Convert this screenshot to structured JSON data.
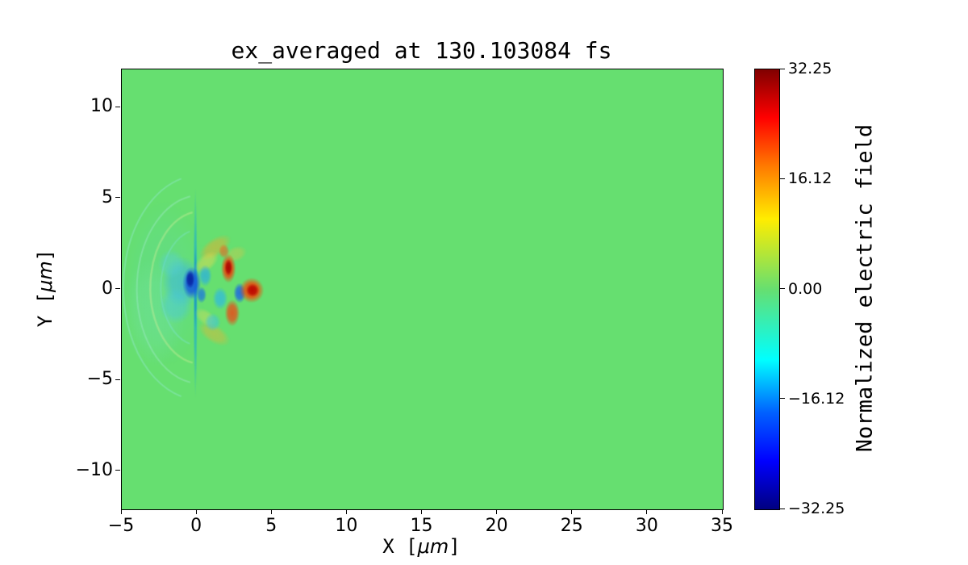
{
  "figure": {
    "background": "#ffffff"
  },
  "chart_data": {
    "type": "heatmap",
    "title": "ex_averaged at 130.103084 fs",
    "xlabel_prefix": "X [",
    "xlabel_unit": "μm",
    "xlabel_suffix": "]",
    "ylabel_prefix": "Y [",
    "ylabel_unit": "μm",
    "ylabel_suffix": "]",
    "xlim": [
      -5,
      35
    ],
    "ylim": [
      -12.1,
      12.1
    ],
    "x_ticks": [
      {
        "value": -5,
        "label": "−5"
      },
      {
        "value": 0,
        "label": "0"
      },
      {
        "value": 5,
        "label": "5"
      },
      {
        "value": 10,
        "label": "10"
      },
      {
        "value": 15,
        "label": "15"
      },
      {
        "value": 20,
        "label": "20"
      },
      {
        "value": 25,
        "label": "25"
      },
      {
        "value": 30,
        "label": "30"
      },
      {
        "value": 35,
        "label": "35"
      }
    ],
    "y_ticks": [
      {
        "value": 10,
        "label": "10"
      },
      {
        "value": 5,
        "label": "5"
      },
      {
        "value": 0,
        "label": "0"
      },
      {
        "value": -5,
        "label": "−5"
      },
      {
        "value": -10,
        "label": "−10"
      }
    ],
    "zero_color": "#66df70",
    "colormap": "jet",
    "colorbar": {
      "label": "Normalized electric field",
      "vmin": -32.25,
      "vmax": 32.25,
      "ticks": [
        {
          "value": 32.25,
          "label": "32.25"
        },
        {
          "value": 16.12,
          "label": "16.12"
        },
        {
          "value": 0,
          "label": "0.00"
        },
        {
          "value": -16.12,
          "label": "−16.12"
        },
        {
          "value": -32.25,
          "label": "−32.25"
        }
      ],
      "gradient": [
        {
          "color": "#800000",
          "pos": 0
        },
        {
          "color": "#ff0000",
          "pos": 11
        },
        {
          "color": "#ff7a00",
          "pos": 22
        },
        {
          "color": "#ffed00",
          "pos": 34
        },
        {
          "color": "#66df70",
          "pos": 50
        },
        {
          "color": "#00ffff",
          "pos": 66
        },
        {
          "color": "#0061ff",
          "pos": 78
        },
        {
          "color": "#0000ff",
          "pos": 89
        },
        {
          "color": "#000080",
          "pos": 100
        }
      ]
    },
    "features": [
      {
        "type": "blob",
        "x": -2.2,
        "y": 0.3,
        "rx": 2.9,
        "ry": 4.6,
        "color": "#5bd8b4",
        "alpha": 0.22
      },
      {
        "type": "blob",
        "x": -2.9,
        "y": -1.3,
        "rx": 2.1,
        "ry": 3.0,
        "color": "#84e8c0",
        "alpha": 0.18
      },
      {
        "type": "arc",
        "x": 0.3,
        "y": 0.1,
        "rx": 5.2,
        "ry": 6.2,
        "a0": 105,
        "a1": 255,
        "color": "#96ecd8",
        "alpha": 0.4,
        "width": 2
      },
      {
        "type": "arc",
        "x": 0.3,
        "y": 0.0,
        "rx": 4.3,
        "ry": 5.2,
        "a0": 100,
        "a1": 260,
        "color": "#a2eccc",
        "alpha": 0.4,
        "width": 2
      },
      {
        "type": "arc",
        "x": 0.3,
        "y": 0.1,
        "rx": 3.4,
        "ry": 4.2,
        "a0": 100,
        "a1": 260,
        "color": "#d2f098",
        "alpha": 0.38,
        "width": 2.5
      },
      {
        "type": "arc",
        "x": 0.2,
        "y": 0.1,
        "rx": 2.6,
        "ry": 3.2,
        "a0": 105,
        "a1": 255,
        "color": "#7ce4d0",
        "alpha": 0.4,
        "width": 2
      },
      {
        "type": "blob",
        "x": -0.1,
        "y": -0.2,
        "rx": 0.14,
        "ry": 5.8,
        "color": "#22b2c6",
        "alpha": 0.8
      },
      {
        "type": "blob",
        "x": -0.1,
        "y": 0.1,
        "rx": 0.1,
        "ry": 2.4,
        "color": "#1184c4",
        "alpha": 0.6
      },
      {
        "type": "blob",
        "x": -1.0,
        "y": 0.4,
        "rx": 1.3,
        "ry": 1.4,
        "color": "#3ab6e6",
        "alpha": 0.6
      },
      {
        "type": "blob",
        "x": -1.7,
        "y": 1.4,
        "rx": 0.9,
        "ry": 0.8,
        "color": "#54cede",
        "alpha": 0.45
      },
      {
        "type": "blob",
        "x": -1.4,
        "y": -0.9,
        "rx": 1.1,
        "ry": 1.0,
        "color": "#48c8e2",
        "alpha": 0.5
      },
      {
        "type": "blob",
        "x": 1.2,
        "y": 2.3,
        "rx": 1.25,
        "ry": 0.5,
        "rot": -35,
        "color": "#f0aa2a",
        "alpha": 0.5
      },
      {
        "type": "blob",
        "x": 0.65,
        "y": 1.5,
        "rx": 0.95,
        "ry": 0.45,
        "rot": -40,
        "color": "#e8da52",
        "alpha": 0.5
      },
      {
        "type": "blob",
        "x": 1.15,
        "y": -2.45,
        "rx": 1.2,
        "ry": 0.5,
        "rot": 32,
        "color": "#eeb232",
        "alpha": 0.45
      },
      {
        "type": "blob",
        "x": 0.6,
        "y": -1.55,
        "rx": 0.85,
        "ry": 0.4,
        "rot": 38,
        "color": "#e8de5c",
        "alpha": 0.4
      },
      {
        "type": "blob",
        "x": 2.6,
        "y": 1.95,
        "rx": 0.75,
        "ry": 0.42,
        "rot": -22,
        "color": "#f0c242",
        "alpha": 0.35
      },
      {
        "type": "blob",
        "x": -0.35,
        "y": 0.35,
        "rx": 0.62,
        "ry": 0.9,
        "color": "#1250dc",
        "alpha": 0.88
      },
      {
        "type": "blob",
        "x": -0.45,
        "y": 0.55,
        "rx": 0.3,
        "ry": 0.5,
        "color": "#071f9e",
        "alpha": 0.9
      },
      {
        "type": "blob",
        "x": 0.55,
        "y": 0.75,
        "rx": 0.45,
        "ry": 0.6,
        "color": "#2aaee2",
        "alpha": 0.75
      },
      {
        "type": "blob",
        "x": 0.3,
        "y": -0.3,
        "rx": 0.34,
        "ry": 0.46,
        "color": "#1a74e0",
        "alpha": 0.78
      },
      {
        "type": "blob",
        "x": 1.55,
        "y": -0.5,
        "rx": 0.5,
        "ry": 0.62,
        "color": "#2eb8e6",
        "alpha": 0.75
      },
      {
        "type": "blob",
        "x": 1.05,
        "y": -1.8,
        "rx": 0.55,
        "ry": 0.5,
        "color": "#3cc4e0",
        "alpha": 0.6
      },
      {
        "type": "blob",
        "x": 2.85,
        "y": -0.2,
        "rx": 0.42,
        "ry": 0.56,
        "color": "#1c60e8",
        "alpha": 0.85
      },
      {
        "type": "blob",
        "x": 2.1,
        "y": 1.15,
        "rx": 0.5,
        "ry": 0.8,
        "color": "#f23a08",
        "alpha": 0.9
      },
      {
        "type": "blob",
        "x": 2.1,
        "y": 1.2,
        "rx": 0.26,
        "ry": 0.46,
        "color": "#a80000",
        "alpha": 0.9
      },
      {
        "type": "blob",
        "x": 1.8,
        "y": 2.1,
        "rx": 0.36,
        "ry": 0.4,
        "color": "#ea6422",
        "alpha": 0.65
      },
      {
        "type": "blob",
        "x": 3.65,
        "y": -0.05,
        "rx": 0.82,
        "ry": 0.7,
        "color": "#f24608",
        "alpha": 0.92
      },
      {
        "type": "blob",
        "x": 3.7,
        "y": -0.05,
        "rx": 0.44,
        "ry": 0.37,
        "color": "#ba0000",
        "alpha": 0.9
      },
      {
        "type": "blob",
        "x": 2.35,
        "y": -1.3,
        "rx": 0.5,
        "ry": 0.74,
        "color": "#ea4a18",
        "alpha": 0.85
      }
    ]
  }
}
